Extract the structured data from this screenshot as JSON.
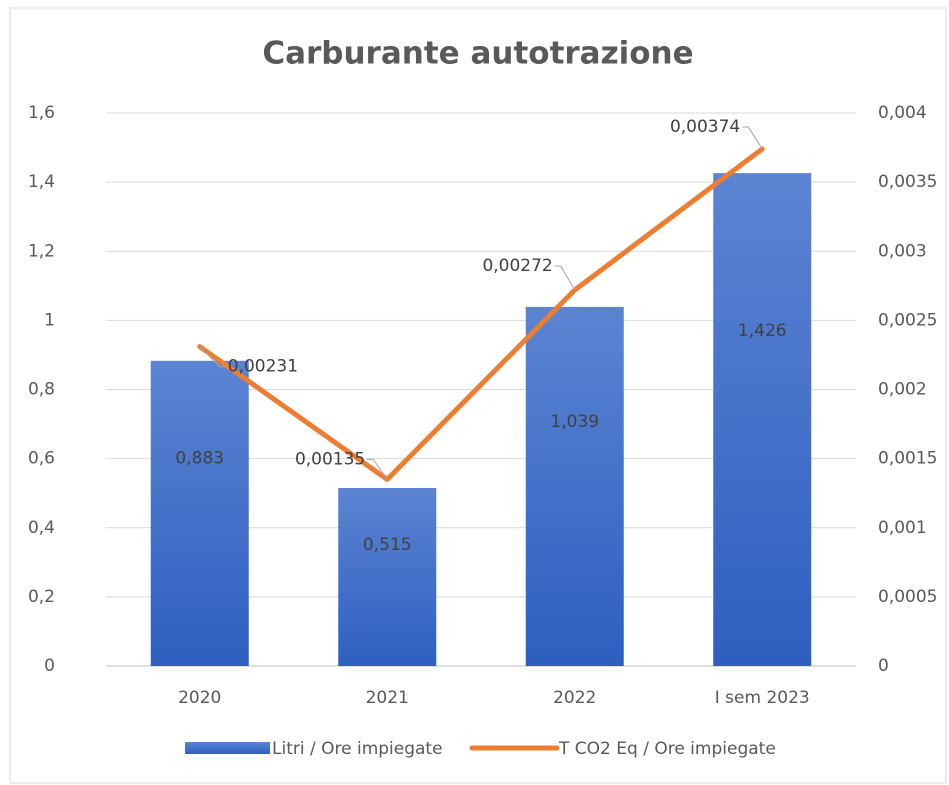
{
  "chart_data": {
    "type": "bar",
    "title": "Carburante autotrazione",
    "categories": [
      "2020",
      "2021",
      "2022",
      "I sem 2023"
    ],
    "series": [
      {
        "name": "Litri / Ore impiegate",
        "type": "bar",
        "color": "#4472c4",
        "values": [
          0.883,
          0.515,
          1.039,
          1.426
        ],
        "value_labels": [
          "0,883",
          "0,515",
          "1,039",
          "1,426"
        ]
      },
      {
        "name": "T CO2 Eq /  Ore impiegate",
        "type": "line",
        "axis": "y2",
        "color": "#ed7d31",
        "values": [
          0.00231,
          0.00135,
          0.00272,
          0.00374
        ],
        "value_labels": [
          "0,00231",
          "0,00135",
          "0,00272",
          "0,00374"
        ]
      }
    ],
    "ylim": [
      0,
      1.6
    ],
    "yticks": [
      0,
      {
        "value": 0.2,
        "label": "0,2"
      },
      {
        "value": 0.4,
        "label": "0,4"
      },
      {
        "value": 0.6,
        "label": "0,6"
      },
      {
        "value": 0.8,
        "label": "0,8"
      },
      1,
      {
        "value": 1.2,
        "label": "1,2"
      },
      {
        "value": 1.4,
        "label": "1,4"
      },
      {
        "value": 1.6,
        "label": "1,6"
      }
    ],
    "y2lim": [
      0,
      0.004
    ],
    "y2ticks": [
      0,
      {
        "value": 0.0005,
        "label": "0,0005"
      },
      {
        "value": 0.001,
        "label": "0,001"
      },
      {
        "value": 0.0015,
        "label": "0,0015"
      },
      {
        "value": 0.002,
        "label": "0,002"
      },
      {
        "value": 0.0025,
        "label": "0,0025"
      },
      {
        "value": 0.003,
        "label": "0,003"
      },
      {
        "value": 0.0035,
        "label": "0,0035"
      },
      {
        "value": 0.004,
        "label": "0,004"
      }
    ],
    "grid": true,
    "legend": "bottom"
  }
}
